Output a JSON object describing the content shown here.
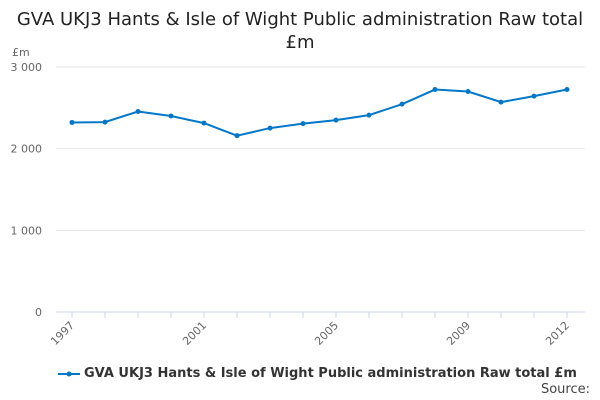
{
  "chart_data": {
    "type": "line",
    "title": "GVA UKJ3 Hants & Isle of Wight Public administration Raw total £m",
    "ylabel": "£m",
    "xlabel": "",
    "x": [
      1997,
      1998,
      1999,
      2000,
      2001,
      2002,
      2003,
      2004,
      2005,
      2006,
      2007,
      2008,
      2009,
      2010,
      2011,
      2012
    ],
    "x_tick_labels": [
      "1997",
      "2001",
      "2005",
      "2009",
      "2012"
    ],
    "y_tick_labels": [
      "0",
      "1 000",
      "2 000",
      "3 000"
    ],
    "y_ticks": [
      0,
      1000,
      2000,
      3000
    ],
    "ylim": [
      0,
      3000
    ],
    "grid": true,
    "legend_position": "bottom",
    "series": [
      {
        "name": "GVA UKJ3 Hants & Isle of Wight Public administration Raw total £m",
        "color": "#0077c8",
        "values": [
          2321,
          2325,
          2455,
          2400,
          2313,
          2159,
          2252,
          2307,
          2350,
          2411,
          2545,
          2724,
          2700,
          2570,
          2643,
          2724
        ]
      }
    ]
  },
  "source_label": "Source:"
}
